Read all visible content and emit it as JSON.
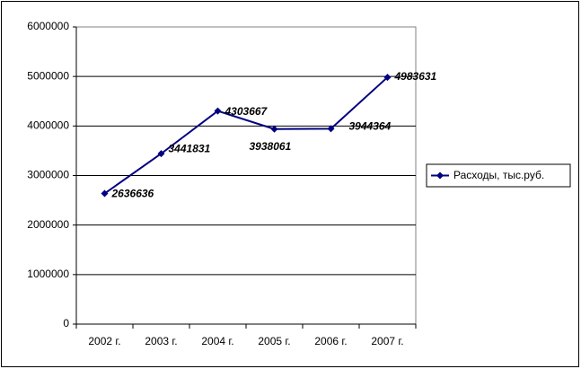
{
  "chart_data": {
    "type": "line",
    "categories": [
      "2002 г.",
      "2003 г.",
      "2004 г.",
      "2005 г.",
      "2006 г.",
      "2007 г."
    ],
    "series": [
      {
        "name": "Расходы, тыс.руб.",
        "color": "#000080",
        "values": [
          2636636,
          3441831,
          4303667,
          3938061,
          3944364,
          4983631
        ]
      }
    ],
    "ylim": [
      0,
      6000000
    ],
    "yticks": [
      0,
      1000000,
      2000000,
      3000000,
      4000000,
      5000000,
      6000000
    ],
    "grid": true,
    "legend": "right"
  }
}
